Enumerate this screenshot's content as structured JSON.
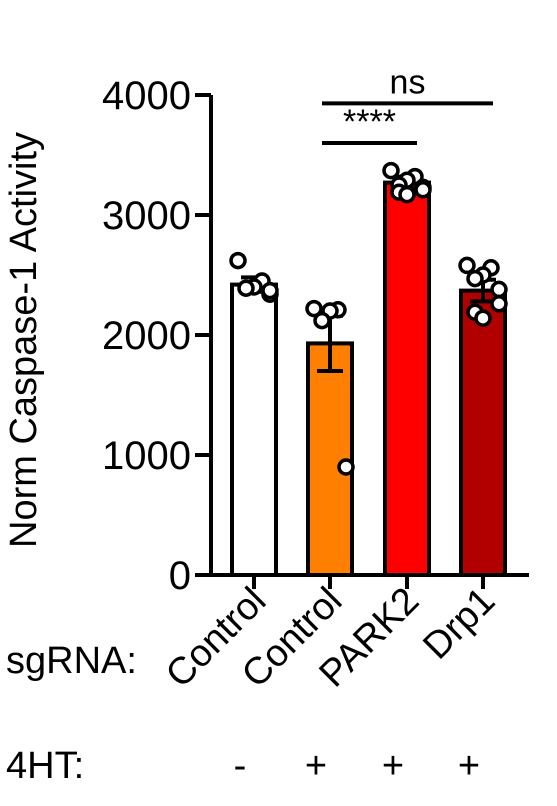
{
  "chart_data": {
    "type": "bar",
    "ylabel": "Norm Caspase-1 Activity",
    "ylim": [
      0,
      4000
    ],
    "yticks": [
      0,
      1000,
      2000,
      3000,
      4000
    ],
    "categories": [
      "Control",
      "Control",
      "PARK2",
      "Drp1"
    ],
    "row_labels": {
      "sgRNA": "sgRNA:",
      "treatment": "4HT:"
    },
    "treatment": [
      "-",
      "+",
      "+",
      "+"
    ],
    "bars": [
      {
        "mean": 2420,
        "sem": 60,
        "color": "#ffffff",
        "points": [
          2620,
          2450,
          2400,
          2390,
          2340,
          2370
        ]
      },
      {
        "mean": 1930,
        "sem": 230,
        "color": "#ff8000",
        "points": [
          2220,
          2210,
          2200,
          2120,
          900
        ]
      },
      {
        "mean": 3270,
        "sem": 50,
        "color": "#ff0000",
        "points": [
          3370,
          3320,
          3290,
          3250,
          3230,
          3210,
          3190,
          3170
        ]
      },
      {
        "mean": 2370,
        "sem": 90,
        "color": "#b00000",
        "points": [
          2580,
          2560,
          2500,
          2470,
          2380,
          2260,
          2190,
          2140
        ]
      }
    ],
    "significance": [
      {
        "from": 1,
        "to": 2,
        "label": "****",
        "y": 3600
      },
      {
        "from": 1,
        "to": 3,
        "label": "ns",
        "y": 3930
      }
    ]
  }
}
